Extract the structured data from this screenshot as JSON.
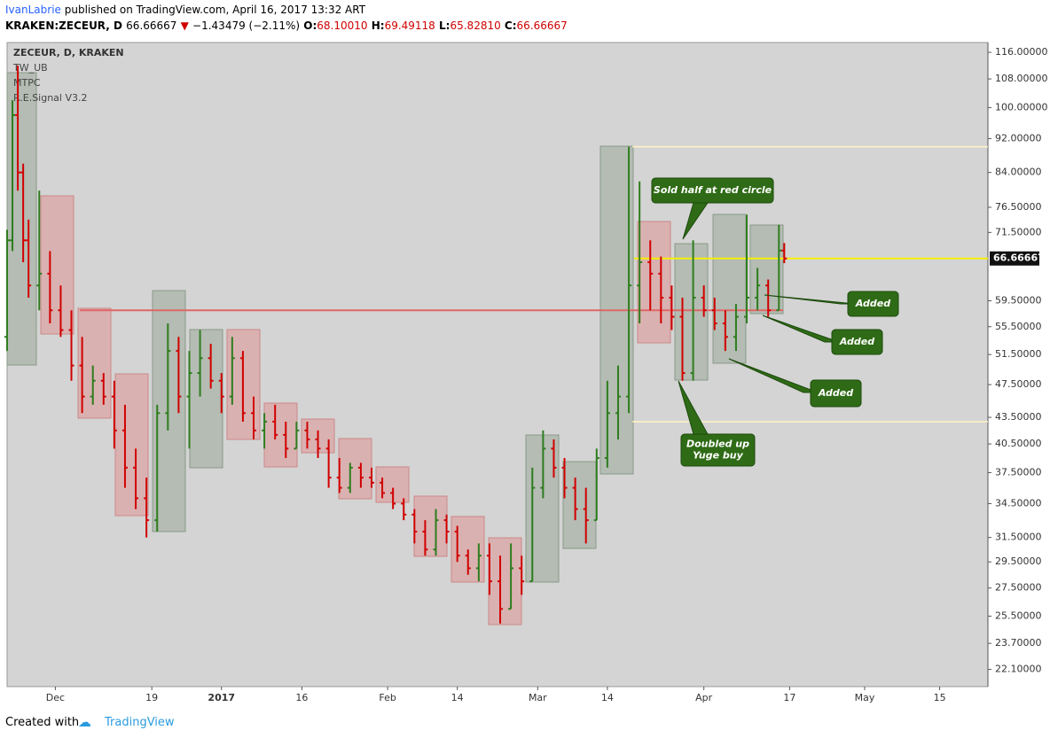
{
  "header": {
    "author": "IvanLabrie",
    "published": "published on TradingView.com, April 16, 2017 13:32 ART",
    "symbol": "KRAKEN:ZECEUR, D",
    "last": "66.66667",
    "change": "−1.43479 (−2.11%)",
    "o_label": "O:",
    "o_value": "68.10010",
    "h_label": "H:",
    "h_value": "69.49118",
    "l_label": "L:",
    "l_value": "65.82810",
    "c_label": "C:",
    "c_value": "66.66667"
  },
  "legend": [
    "ZECEUR, D, KRAKEN",
    "TW_UB",
    "MTPC",
    "R.E.Signal V3.2"
  ],
  "footer": {
    "created": "Created with",
    "brand": "TradingView"
  },
  "chart_data": {
    "type": "ohlc",
    "log_scale": true,
    "up_color": "#2e7d1e",
    "down_color": "#d10000",
    "x": [
      "2016-11-22",
      "2016-11-23",
      "2016-11-24",
      "2016-11-25",
      "2016-11-26",
      "2016-11-28",
      "2016-11-30",
      "2016-12-02",
      "2016-12-04",
      "2016-12-06",
      "2016-12-08",
      "2016-12-10",
      "2016-12-12",
      "2016-12-14",
      "2016-12-16",
      "2016-12-18",
      "2016-12-20",
      "2016-12-22",
      "2016-12-24",
      "2016-12-26",
      "2016-12-28",
      "2016-12-30",
      "2017-01-01",
      "2017-01-03",
      "2017-01-05",
      "2017-01-07",
      "2017-01-09",
      "2017-01-11",
      "2017-01-13",
      "2017-01-15",
      "2017-01-17",
      "2017-01-19",
      "2017-01-21",
      "2017-01-23",
      "2017-01-25",
      "2017-01-27",
      "2017-01-29",
      "2017-01-31",
      "2017-02-02",
      "2017-02-04",
      "2017-02-06",
      "2017-02-08",
      "2017-02-10",
      "2017-02-12",
      "2017-02-14",
      "2017-02-16",
      "2017-02-18",
      "2017-02-20",
      "2017-02-22",
      "2017-02-24",
      "2017-02-26",
      "2017-02-28",
      "2017-03-02",
      "2017-03-04",
      "2017-03-06",
      "2017-03-08",
      "2017-03-10",
      "2017-03-12",
      "2017-03-14",
      "2017-03-16",
      "2017-03-18",
      "2017-03-20",
      "2017-03-22",
      "2017-03-24",
      "2017-03-26",
      "2017-03-28",
      "2017-03-30",
      "2017-04-01",
      "2017-04-03",
      "2017-04-05",
      "2017-04-07",
      "2017-04-09",
      "2017-04-11",
      "2017-04-13",
      "2017-04-15",
      "2017-04-16"
    ],
    "open": [
      54,
      70,
      98,
      84,
      70,
      62,
      64,
      58,
      55,
      50,
      46,
      48,
      46,
      42,
      38,
      35,
      33,
      44,
      52,
      46,
      49,
      51,
      48,
      46,
      51,
      44,
      42,
      43,
      41.5,
      40,
      42,
      41,
      40,
      37,
      36,
      38,
      37,
      36.5,
      35.5,
      34.5,
      33.5,
      32,
      30.5,
      33,
      32,
      30,
      29,
      30,
      28,
      26,
      29,
      28,
      36,
      40,
      38,
      36,
      34,
      33,
      39,
      44,
      46,
      62,
      66,
      64,
      60,
      57,
      49,
      60,
      58,
      56,
      54,
      57,
      60,
      62,
      58,
      68.1
    ],
    "high": [
      72,
      102,
      112,
      86,
      74,
      80,
      68,
      62,
      58,
      54,
      50,
      49,
      48,
      45,
      40,
      37,
      45,
      56,
      54,
      52,
      55,
      53,
      49,
      54,
      52,
      46,
      44,
      45,
      43,
      43,
      43,
      42,
      41,
      39,
      38.5,
      38.5,
      38,
      37,
      36,
      35,
      34,
      33,
      34,
      33.5,
      32.5,
      30.5,
      31,
      31,
      30,
      31,
      30,
      38,
      42,
      41,
      39,
      37,
      36,
      40,
      48,
      50,
      90,
      82,
      70,
      67,
      62,
      60,
      70,
      62,
      60,
      58,
      59,
      75,
      65,
      63,
      73,
      69.49118
    ],
    "low": [
      52,
      68,
      80,
      66,
      60,
      58,
      56,
      54,
      48,
      44,
      45,
      45,
      40,
      36,
      34,
      31.5,
      32,
      42,
      44,
      40,
      46,
      47,
      44,
      45,
      43,
      41,
      40,
      41,
      39,
      40,
      40,
      39,
      36,
      35.5,
      35.5,
      36,
      36,
      35,
      34,
      33,
      31,
      30,
      30,
      31,
      29.5,
      28.5,
      28,
      27,
      25,
      26,
      27,
      28,
      35,
      37,
      35,
      33,
      31,
      33,
      38,
      41,
      44,
      56,
      58,
      56,
      55,
      48,
      48,
      57,
      55,
      52,
      52,
      56,
      58,
      57,
      58,
      65.8281
    ],
    "close": [
      70,
      98,
      84,
      70,
      62,
      64,
      58,
      55,
      50,
      46,
      48,
      46,
      42,
      38,
      35,
      33,
      44,
      52,
      46,
      49,
      51,
      48,
      46,
      51,
      44,
      42,
      43,
      41.5,
      40,
      42,
      41,
      40,
      37,
      36,
      38,
      37,
      36.5,
      35.5,
      34.5,
      33.5,
      32,
      30.5,
      33,
      32,
      30,
      29,
      30,
      28,
      26,
      29,
      28,
      36,
      40,
      38,
      36,
      34,
      33,
      39,
      44,
      46,
      62,
      66,
      64,
      60,
      57,
      49,
      60,
      58,
      56,
      54,
      57,
      60,
      62,
      58,
      68.1,
      66.66667
    ],
    "xlim": [
      "2016-11-22",
      "2017-05-24"
    ],
    "xticks": [
      {
        "value": "2016-12-01",
        "label": "Dec"
      },
      {
        "value": "2016-12-19",
        "label": "19"
      },
      {
        "value": "2017-01-01",
        "label": "2017"
      },
      {
        "value": "2017-01-16",
        "label": "16"
      },
      {
        "value": "2017-02-01",
        "label": "Feb"
      },
      {
        "value": "2017-02-14",
        "label": "14"
      },
      {
        "value": "2017-03-01",
        "label": "Mar"
      },
      {
        "value": "2017-03-14",
        "label": "14"
      },
      {
        "value": "2017-04-01",
        "label": "Apr"
      },
      {
        "value": "2017-04-17",
        "label": "17"
      },
      {
        "value": "2017-05-01",
        "label": "May"
      },
      {
        "value": "2017-05-15",
        "label": "15"
      }
    ],
    "ylim": [
      21.1,
      119.1
    ],
    "yticks": [
      {
        "value": 116,
        "label": "116.00000"
      },
      {
        "value": 108,
        "label": "108.00000"
      },
      {
        "value": 100,
        "label": "100.00000"
      },
      {
        "value": 92,
        "label": "92.00000"
      },
      {
        "value": 84,
        "label": "84.00000"
      },
      {
        "value": 76.5,
        "label": "76.50000"
      },
      {
        "value": 71.5,
        "label": "71.50000"
      },
      {
        "value": 59.5,
        "label": "59.50000"
      },
      {
        "value": 55.5,
        "label": "55.50000"
      },
      {
        "value": 51.5,
        "label": "51.50000"
      },
      {
        "value": 47.5,
        "label": "47.50000"
      },
      {
        "value": 43.5,
        "label": "43.50000"
      },
      {
        "value": 40.5,
        "label": "40.50000"
      },
      {
        "value": 37.5,
        "label": "37.50000"
      },
      {
        "value": 34.5,
        "label": "34.50000"
      },
      {
        "value": 31.5,
        "label": "31.50000"
      },
      {
        "value": 29.5,
        "label": "29.50000"
      },
      {
        "value": 27.5,
        "label": "27.50000"
      },
      {
        "value": 25.5,
        "label": "25.50000"
      },
      {
        "value": 23.7,
        "label": "23.70000"
      },
      {
        "value": 22.1,
        "label": "22.10000"
      }
    ],
    "levels": [
      {
        "value": 66.66667,
        "color": "#f5f000"
      },
      {
        "value": 58,
        "color": "#e06666"
      },
      {
        "value": 90,
        "color": "#fff3c4"
      },
      {
        "value": 43,
        "color": "#fff3c4"
      }
    ],
    "annotations": [
      {
        "text": [
          "Sold half at red circle"
        ]
      },
      {
        "text": [
          "Added"
        ]
      },
      {
        "text": [
          "Added"
        ]
      },
      {
        "text": [
          "Added"
        ]
      },
      {
        "text": [
          "Doubled up",
          "Yuge buy"
        ]
      }
    ]
  }
}
